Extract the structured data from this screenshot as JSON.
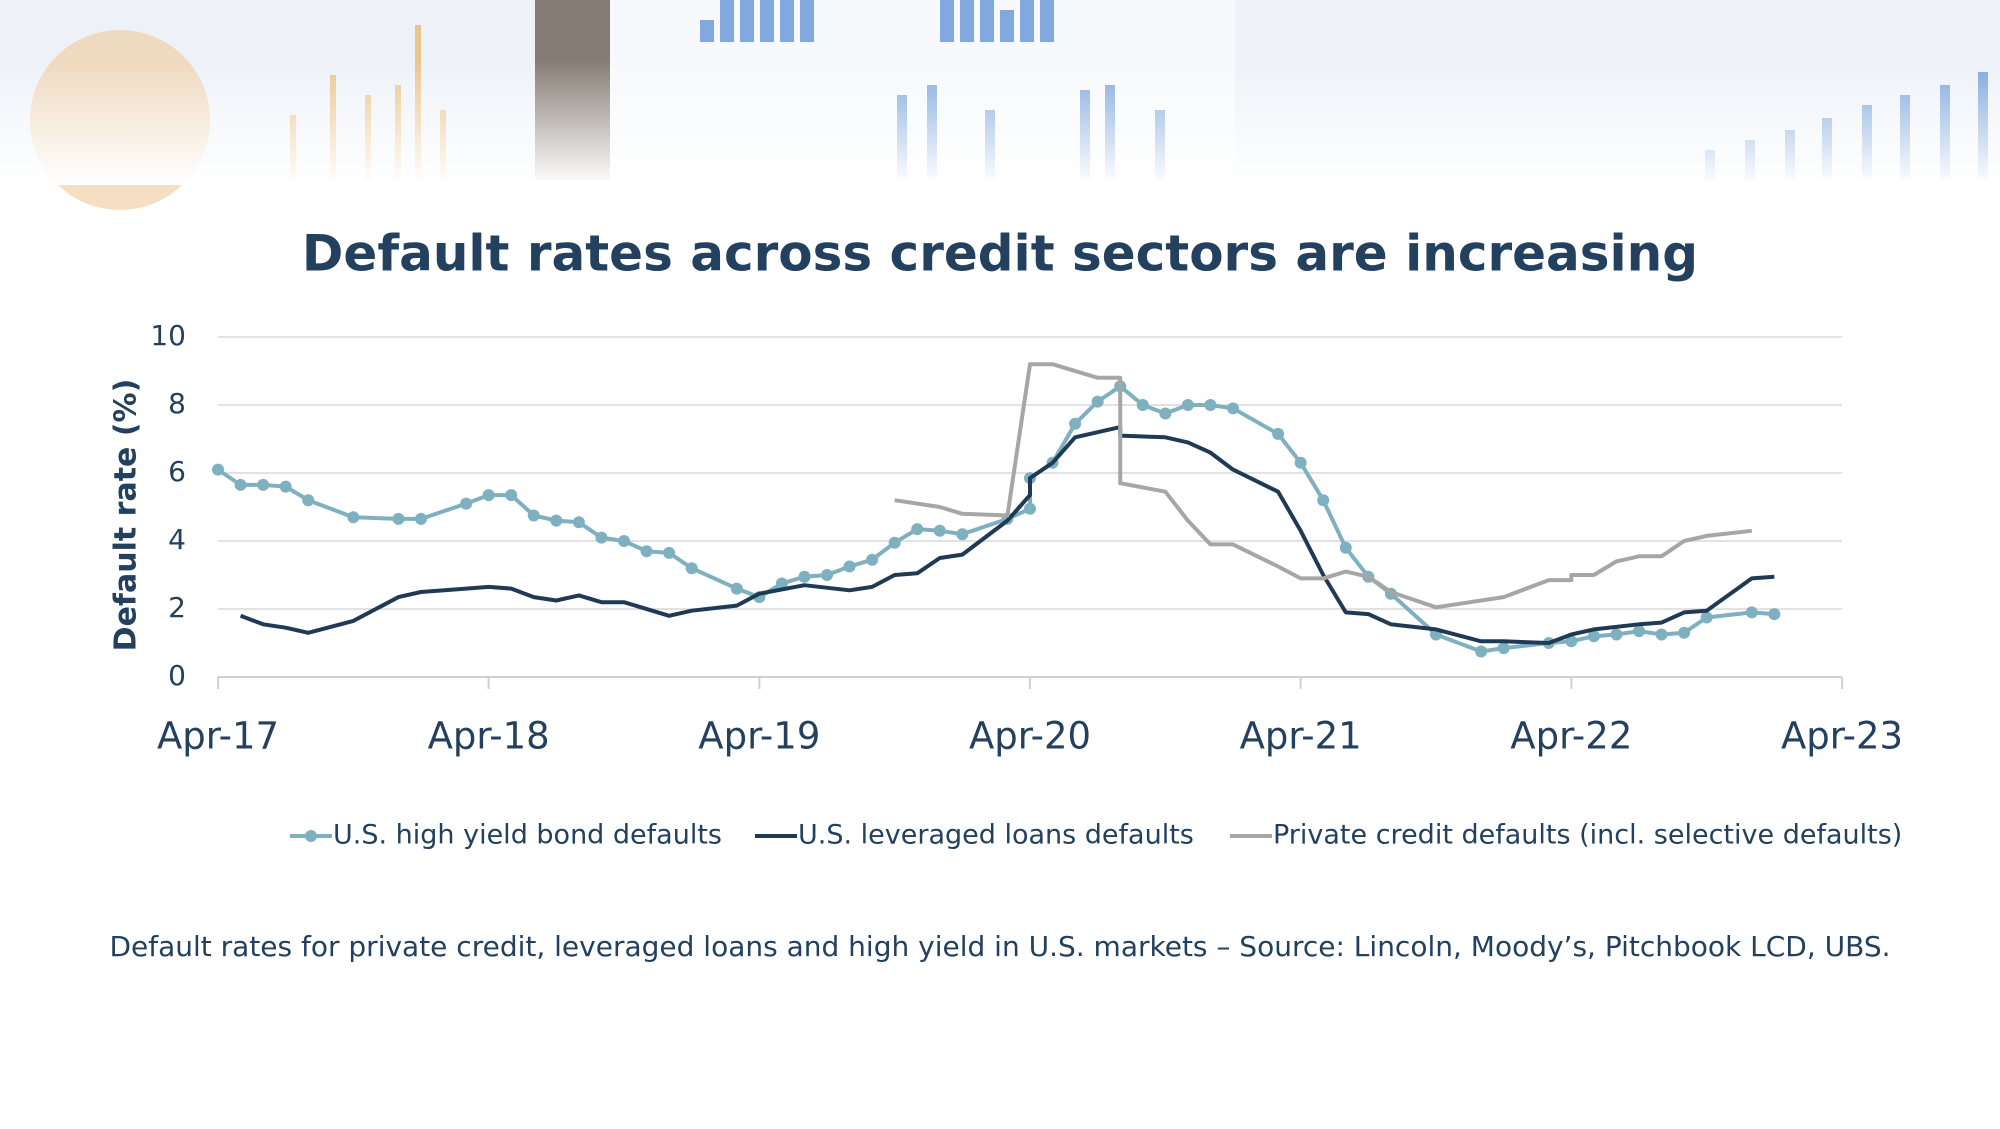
{
  "chart_data": {
    "type": "line",
    "title": "Default rates across credit sectors are increasing",
    "ylabel": "Default rate (%)",
    "caption": "Default rates for private credit, leveraged loans and high yield in U.S. markets – Source: Lincoln, Moody’s, Pitchbook LCD, UBS.",
    "xlim": [
      "2017-04",
      "2023-04"
    ],
    "xticks": [
      {
        "value": "2017-04",
        "label": "Apr-17"
      },
      {
        "value": "2018-04",
        "label": "Apr-18"
      },
      {
        "value": "2019-04",
        "label": "Apr-19"
      },
      {
        "value": "2020-04",
        "label": "Apr-20"
      },
      {
        "value": "2021-04",
        "label": "Apr-21"
      },
      {
        "value": "2022-04",
        "label": "Apr-22"
      },
      {
        "value": "2023-04",
        "label": "Apr-23"
      }
    ],
    "ylim": [
      0,
      10
    ],
    "yticks": [
      0,
      2,
      4,
      6,
      8,
      10
    ],
    "grid": true,
    "series": [
      {
        "name": "U.S. high yield bond defaults",
        "color": "#7fb0c0",
        "markers": true,
        "x": [
          "2017-04",
          "2017-05",
          "2017-06",
          "2017-07",
          "2017-08",
          "2017-10",
          "2017-12",
          "2018-01",
          "2018-03",
          "2018-04",
          "2018-05",
          "2018-06",
          "2018-07",
          "2018-08",
          "2018-09",
          "2018-10",
          "2018-11",
          "2018-12",
          "2019-01",
          "2019-03",
          "2019-04",
          "2019-05",
          "2019-06",
          "2019-07",
          "2019-08",
          "2019-09",
          "2019-10",
          "2019-11",
          "2019-12",
          "2020-01",
          "2020-03",
          "2020-04",
          "2020-04",
          "2020-05",
          "2020-06",
          "2020-07",
          "2020-08",
          "2020-09",
          "2020-10",
          "2020-11",
          "2020-12",
          "2021-01",
          "2021-03",
          "2021-04",
          "2021-05",
          "2021-06",
          "2021-07",
          "2021-08",
          "2021-10",
          "2021-12",
          "2022-01",
          "2022-03",
          "2022-04",
          "2022-05",
          "2022-06",
          "2022-07",
          "2022-08",
          "2022-09",
          "2022-10",
          "2022-12",
          "2023-01"
        ],
        "values": [
          6.1,
          5.65,
          5.65,
          5.6,
          5.2,
          4.7,
          4.65,
          4.65,
          5.1,
          5.35,
          5.35,
          4.75,
          4.6,
          4.55,
          4.1,
          4.0,
          3.7,
          3.65,
          3.2,
          2.6,
          2.35,
          2.75,
          2.95,
          3.0,
          3.25,
          3.45,
          3.95,
          4.35,
          4.3,
          4.2,
          4.65,
          4.95,
          5.85,
          6.3,
          7.45,
          8.1,
          8.55,
          8.0,
          7.75,
          8.0,
          8.0,
          7.9,
          7.15,
          6.3,
          5.2,
          3.8,
          2.95,
          2.45,
          1.25,
          0.75,
          0.85,
          1.0,
          1.05,
          1.2,
          1.25,
          1.35,
          1.25,
          1.3,
          1.75,
          1.9,
          1.85
        ]
      },
      {
        "name": "U.S. leveraged loans defaults",
        "color": "#1f3a55",
        "x": [
          "2017-05",
          "2017-06",
          "2017-07",
          "2017-08",
          "2017-10",
          "2017-12",
          "2018-01",
          "2018-03",
          "2018-04",
          "2018-05",
          "2018-06",
          "2018-07",
          "2018-08",
          "2018-09",
          "2018-10",
          "2018-12",
          "2019-01",
          "2019-03",
          "2019-04",
          "2019-06",
          "2019-08",
          "2019-09",
          "2019-10",
          "2019-11",
          "2019-12",
          "2020-01",
          "2020-03",
          "2020-04",
          "2020-04",
          "2020-05",
          "2020-06",
          "2020-07",
          "2020-08",
          "2020-08",
          "2020-10",
          "2020-11",
          "2020-12",
          "2021-01",
          "2021-03",
          "2021-04",
          "2021-05",
          "2021-06",
          "2021-07",
          "2021-08",
          "2021-10",
          "2021-12",
          "2022-01",
          "2022-03",
          "2022-04",
          "2022-05",
          "2022-07",
          "2022-08",
          "2022-09",
          "2022-10",
          "2022-12",
          "2023-01"
        ],
        "values": [
          1.8,
          1.55,
          1.45,
          1.3,
          1.65,
          2.35,
          2.5,
          2.6,
          2.65,
          2.6,
          2.35,
          2.25,
          2.4,
          2.2,
          2.2,
          1.8,
          1.95,
          2.1,
          2.45,
          2.7,
          2.55,
          2.65,
          3.0,
          3.05,
          3.5,
          3.6,
          4.6,
          5.35,
          5.85,
          6.3,
          7.05,
          7.2,
          7.35,
          7.1,
          7.05,
          6.9,
          6.6,
          6.1,
          5.45,
          4.3,
          3.0,
          1.9,
          1.85,
          1.55,
          1.4,
          1.05,
          1.05,
          1.0,
          1.25,
          1.4,
          1.55,
          1.6,
          1.9,
          1.95,
          2.9,
          2.95
        ]
      },
      {
        "name": "Private credit defaults (incl. selective defaults)",
        "color": "#a6a6a6",
        "x": [
          "2019-10",
          "2019-12",
          "2020-01",
          "2020-03",
          "2020-04",
          "2020-05",
          "2020-07",
          "2020-08",
          "2020-08",
          "2020-10",
          "2020-11",
          "2020-12",
          "2021-01",
          "2021-03",
          "2021-04",
          "2021-05",
          "2021-06",
          "2021-07",
          "2021-08",
          "2021-10",
          "2022-01",
          "2022-03",
          "2022-04",
          "2022-04",
          "2022-05",
          "2022-06",
          "2022-07",
          "2022-08",
          "2022-09",
          "2022-10",
          "2022-12"
        ],
        "values": [
          5.2,
          5.0,
          4.8,
          4.75,
          9.2,
          9.2,
          8.8,
          8.8,
          5.7,
          5.45,
          4.6,
          3.9,
          3.9,
          3.25,
          2.9,
          2.9,
          3.1,
          2.95,
          2.5,
          2.05,
          2.35,
          2.85,
          2.85,
          3.0,
          3.0,
          3.4,
          3.55,
          3.55,
          4.0,
          4.15,
          4.3
        ]
      }
    ]
  }
}
